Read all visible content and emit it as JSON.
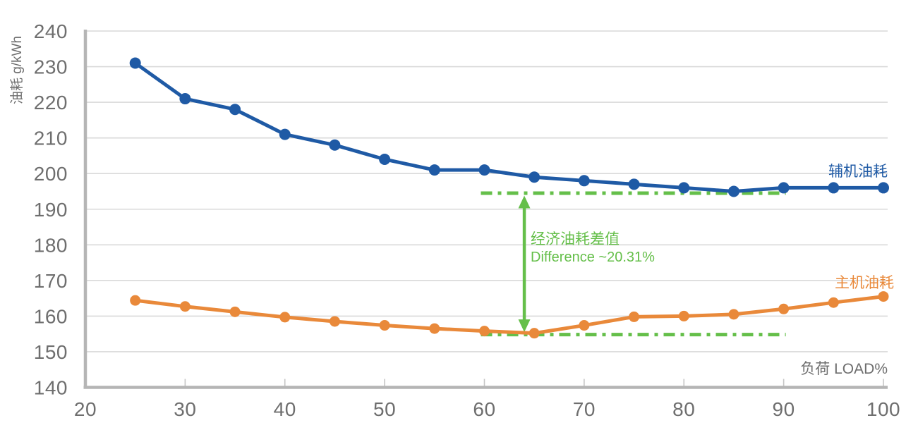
{
  "chart_data": {
    "type": "line",
    "title": "",
    "xlabel": "负荷 LOAD%",
    "ylabel": "油耗 g/kWh",
    "xlim": [
      20,
      100
    ],
    "ylim": [
      140,
      240
    ],
    "x_ticks": [
      20,
      30,
      40,
      50,
      60,
      70,
      80,
      90,
      100
    ],
    "y_ticks": [
      140,
      150,
      160,
      170,
      180,
      190,
      200,
      210,
      220,
      230,
      240
    ],
    "grid": "horizontal-only",
    "legend_position": "inline-right-of-lines",
    "x": [
      25,
      30,
      35,
      40,
      45,
      50,
      55,
      60,
      65,
      70,
      75,
      80,
      85,
      90,
      95,
      100
    ],
    "series": [
      {
        "name": "辅机油耗",
        "color": "#1f5aa5",
        "values": [
          231,
          221,
          218,
          211,
          208,
          204,
          201,
          201,
          199,
          198,
          197,
          196,
          195,
          196,
          196,
          196
        ]
      },
      {
        "name": "主机油耗",
        "color": "#e9893a",
        "values": [
          164.4,
          162.7,
          161.2,
          159.7,
          158.5,
          157.4,
          156.5,
          155.8,
          155.2,
          157.4,
          159.8,
          160,
          160.5,
          162,
          163.8,
          165.5
        ]
      }
    ],
    "annotation": {
      "label_zh": "经济油耗差值",
      "label_en": "Difference ~20.31%",
      "color": "#65bf4a",
      "upper_ref_value": 194.5,
      "lower_ref_value": 154.8,
      "ref_load_start": 60,
      "ref_load_end": 90,
      "arrow_load": 64
    }
  },
  "colors": {
    "aux_series": "#1f5aa5",
    "main_series": "#e9893a",
    "annotation_green": "#65bf4a",
    "gridline": "#d9d9d9",
    "axis_line": "#b5b5b5",
    "tick_mark": "#c6c6c6",
    "tick_label": "#6e6e6e",
    "background": "#ffffff"
  }
}
